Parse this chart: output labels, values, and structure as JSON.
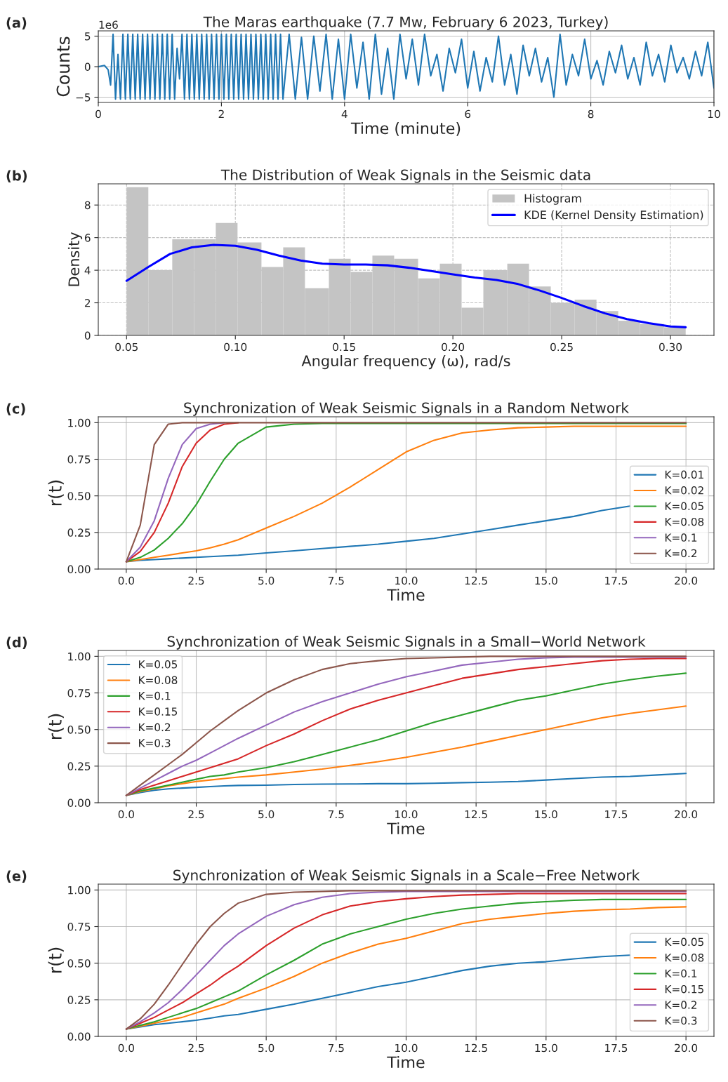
{
  "chart_data": [
    {
      "type": "line",
      "title": "The Maras earthquake (7.7 Mw, February 6 2023, Turkey)",
      "xlabel": "Time (minute)",
      "ylabel": "Counts",
      "annotations": [
        "(a)",
        "1e6"
      ],
      "xlim": [
        0,
        10
      ],
      "xticks": [
        0,
        2,
        4,
        6,
        8,
        10
      ],
      "ylim": [
        -5.86,
        5.86
      ],
      "yticks": [
        {
          "value": -5,
          "label": "−5"
        },
        0,
        5
      ],
      "grid": true,
      "legend": false,
      "series": [
        {
          "color": "#1f77b4",
          "x": [
            0,
            0.1,
            0.16,
            0.2,
            0.24,
            0.28,
            0.32,
            0.36,
            0.4,
            0.44,
            0.48,
            0.52,
            0.56,
            0.6,
            0.64,
            0.68,
            0.72,
            0.76,
            0.8,
            0.84,
            0.88,
            0.92,
            0.96,
            1.0,
            1.04,
            1.08,
            1.12,
            1.16,
            1.2,
            1.24,
            1.28,
            1.32,
            1.36,
            1.4,
            1.44,
            1.48,
            1.52,
            1.56,
            1.6,
            1.64,
            1.68,
            1.72,
            1.76,
            1.8,
            1.84,
            1.88,
            1.92,
            1.96,
            2.0,
            2.04,
            2.08,
            2.12,
            2.16,
            2.2,
            2.24,
            2.28,
            2.32,
            2.36,
            2.4,
            2.44,
            2.48,
            2.52,
            2.56,
            2.6,
            2.64,
            2.68,
            2.72,
            2.76,
            2.8,
            2.84,
            2.88,
            2.92,
            2.96,
            3.0,
            3.1,
            3.2,
            3.3,
            3.4,
            3.5,
            3.6,
            3.7,
            3.8,
            3.9,
            4.0,
            4.1,
            4.2,
            4.3,
            4.4,
            4.5,
            4.6,
            4.7,
            4.8,
            4.9,
            5.0,
            5.1,
            5.2,
            5.3,
            5.4,
            5.5,
            5.6,
            5.7,
            5.8,
            5.9,
            6.0,
            6.1,
            6.2,
            6.3,
            6.4,
            6.5,
            6.6,
            6.7,
            6.8,
            6.9,
            7.0,
            7.1,
            7.2,
            7.3,
            7.4,
            7.5,
            7.6,
            7.7,
            7.8,
            7.9,
            8.0,
            8.1,
            8.2,
            8.3,
            8.4,
            8.5,
            8.6,
            8.7,
            8.8,
            8.9,
            9.0,
            9.1,
            9.2,
            9.3,
            9.4,
            9.5,
            9.6,
            9.7,
            9.8,
            9.9,
            10.0
          ],
          "values": [
            0,
            0.2,
            -0.5,
            -3,
            5.3,
            -5.3,
            2,
            -5.3,
            5.3,
            -5.3,
            5.3,
            -5.3,
            5.3,
            -5.3,
            5.3,
            -5.3,
            5.3,
            -5.3,
            5.3,
            -5.3,
            5.3,
            -5.3,
            5.3,
            -5.3,
            5.3,
            -5.3,
            5.3,
            -5.3,
            5.3,
            -5.3,
            3,
            -2,
            5.3,
            -5.3,
            5.3,
            -5.3,
            5.3,
            -5.3,
            5.3,
            -5.3,
            5.3,
            -5.3,
            5.3,
            -5.3,
            5.3,
            -5.3,
            5.3,
            -5.3,
            5.3,
            -5.3,
            5.3,
            -5.3,
            5.3,
            -5.3,
            5.3,
            -5.3,
            5.3,
            -5.3,
            5.3,
            -5.3,
            5.3,
            -5.3,
            5.3,
            -5.3,
            5.3,
            -5.3,
            5.3,
            -5.3,
            5.3,
            -5.3,
            5.3,
            -5.3,
            5.3,
            -5.3,
            5.3,
            -5.3,
            4.8,
            -5.3,
            5.0,
            -4.0,
            5.3,
            -5.3,
            4.5,
            -5.3,
            5.3,
            -3.5,
            4.0,
            -5.3,
            5.3,
            -4.5,
            3.0,
            -5.3,
            5.3,
            -2.0,
            4.5,
            -3.0,
            5.3,
            -1.5,
            2.0,
            -4.0,
            3.0,
            -1.0,
            4.5,
            -3.5,
            2.5,
            -4.0,
            1.5,
            -2.5,
            5.0,
            -3.0,
            2.0,
            -4.5,
            3.5,
            -1.5,
            3.0,
            -2.5,
            1.5,
            -5.0,
            5.3,
            -3.0,
            2.0,
            -1.5,
            4.5,
            -2.0,
            1.0,
            -3.0,
            2.5,
            -1.0,
            3.5,
            -2.0,
            1.5,
            -3.0,
            4.0,
            -1.5,
            2.0,
            -2.5,
            3.5,
            -1.0,
            1.5,
            -2.0,
            2.5,
            -1.5,
            4.0,
            -3.5
          ]
        }
      ]
    },
    {
      "type": "histogram",
      "title": "The Distribution of Weak Signals in the Seismic data",
      "xlabel": "Angular frequency (ω), rad/s",
      "ylabel": "Density",
      "annotations": [
        "(b)"
      ],
      "xlim": [
        0.037,
        0.32
      ],
      "xticks": [
        0.05,
        {
          "value": 0.1,
          "label": "0.10"
        },
        0.15,
        {
          "value": 0.2,
          "label": "0.20"
        },
        0.25,
        {
          "value": 0.3,
          "label": "0.30"
        }
      ],
      "ylim": [
        0,
        9.3
      ],
      "yticks": [
        0,
        2,
        4,
        6,
        8
      ],
      "grid": true,
      "legend": "top right",
      "series": [
        {
          "name": "Histogram",
          "type": "histogram",
          "color": "#c4c4c4",
          "bins": [
            0.05,
            0.06,
            0.071,
            0.081,
            0.091,
            0.101,
            0.112,
            0.122,
            0.132,
            0.143,
            0.153,
            0.163,
            0.173,
            0.184,
            0.194,
            0.204,
            0.214,
            0.225,
            0.235,
            0.245,
            0.256,
            0.266,
            0.276,
            0.286,
            0.297,
            0.307
          ],
          "values": [
            9.1,
            4.0,
            5.9,
            5.9,
            6.9,
            5.7,
            4.2,
            5.4,
            2.9,
            4.7,
            3.9,
            4.9,
            4.7,
            3.5,
            4.4,
            1.7,
            4.0,
            4.4,
            3.0,
            2.0,
            2.2,
            1.5,
            0.9,
            0.7,
            0.5
          ]
        },
        {
          "name": "KDE (Kernel Density Estimation)",
          "type": "line",
          "color": "#0000ff",
          "x": [
            0.05,
            0.06,
            0.07,
            0.08,
            0.09,
            0.1,
            0.11,
            0.12,
            0.13,
            0.14,
            0.15,
            0.16,
            0.17,
            0.18,
            0.19,
            0.2,
            0.21,
            0.22,
            0.23,
            0.24,
            0.25,
            0.26,
            0.27,
            0.28,
            0.29,
            0.3,
            0.307
          ],
          "values": [
            3.35,
            4.2,
            5.0,
            5.4,
            5.55,
            5.5,
            5.25,
            4.9,
            4.6,
            4.4,
            4.35,
            4.35,
            4.3,
            4.15,
            3.95,
            3.75,
            3.55,
            3.4,
            3.15,
            2.75,
            2.3,
            1.8,
            1.35,
            1.0,
            0.75,
            0.55,
            0.5
          ]
        }
      ]
    },
    {
      "type": "line",
      "title": "Synchronization of Weak Seismic Signals in a Random Network",
      "xlabel": "Time",
      "ylabel": "r(t)",
      "annotations": [
        "(c)"
      ],
      "x": [
        0,
        0.5,
        1,
        1.5,
        2,
        2.5,
        3,
        3.5,
        4,
        5,
        6,
        7,
        8,
        9,
        10,
        11,
        12,
        13,
        14,
        15,
        16,
        17,
        18,
        19,
        20
      ],
      "xlim": [
        -1,
        21
      ],
      "xticks": [
        {
          "value": 0,
          "label": "0.0"
        },
        2.5,
        {
          "value": 5,
          "label": "5.0"
        },
        7.5,
        {
          "value": 10,
          "label": "10.0"
        },
        12.5,
        {
          "value": 15,
          "label": "15.0"
        },
        17.5,
        {
          "value": 20,
          "label": "20.0"
        }
      ],
      "ylim": [
        0,
        1.04
      ],
      "yticks": [
        {
          "value": 0,
          "label": "0.00"
        },
        0.25,
        {
          "value": 0.5,
          "label": "0.50"
        },
        0.75,
        {
          "value": 1,
          "label": "1.00"
        }
      ],
      "grid": true,
      "legend": "lower right",
      "series": [
        {
          "name": "K=0.01",
          "color": "#1f77b4",
          "values": [
            0.05,
            0.06,
            0.065,
            0.07,
            0.075,
            0.08,
            0.085,
            0.09,
            0.095,
            0.11,
            0.125,
            0.14,
            0.155,
            0.17,
            0.19,
            0.21,
            0.24,
            0.27,
            0.3,
            0.33,
            0.36,
            0.4,
            0.43,
            null,
            null
          ]
        },
        {
          "name": "K=0.02",
          "color": "#ff7f0e",
          "values": [
            0.05,
            0.065,
            0.08,
            0.095,
            0.11,
            0.125,
            0.145,
            0.17,
            0.2,
            0.28,
            0.36,
            0.45,
            0.56,
            0.68,
            0.8,
            0.88,
            0.93,
            0.95,
            0.965,
            0.97,
            0.975,
            0.975,
            0.975,
            0.975,
            0.975
          ]
        },
        {
          "name": "K=0.05",
          "color": "#2ca02c",
          "values": [
            0.05,
            0.08,
            0.13,
            0.21,
            0.31,
            0.44,
            0.6,
            0.75,
            0.86,
            0.97,
            0.99,
            0.995,
            0.995,
            0.995,
            0.995,
            0.995,
            0.995,
            0.995,
            0.995,
            0.995,
            0.995,
            0.995,
            0.995,
            0.995,
            0.995
          ]
        },
        {
          "name": "K=0.08",
          "color": "#d62728",
          "values": [
            0.05,
            0.12,
            0.25,
            0.45,
            0.7,
            0.86,
            0.95,
            0.99,
            1.0,
            null,
            null,
            null,
            null,
            null,
            null,
            null,
            null,
            null,
            null,
            null,
            null,
            null,
            null,
            null,
            null
          ]
        },
        {
          "name": "K=0.1",
          "color": "#9467bd",
          "values": [
            0.05,
            0.15,
            0.33,
            0.62,
            0.85,
            0.96,
            0.99,
            1.0,
            null,
            null,
            null,
            null,
            null,
            null,
            null,
            null,
            null,
            null,
            null,
            null,
            null,
            null,
            null,
            null,
            null
          ]
        },
        {
          "name": "K=0.2",
          "color": "#8c564b",
          "values": [
            0.05,
            0.3,
            0.85,
            0.99,
            1.0,
            1.0,
            1.0,
            1.0,
            1.0,
            1.0,
            1.0,
            1.0,
            1.0,
            1.0,
            1.0,
            1.0,
            1.0,
            1.0,
            1.0,
            1.0,
            1.0,
            1.0,
            1.0,
            1.0,
            1.0
          ]
        }
      ]
    },
    {
      "type": "line",
      "title": "Synchronization of Weak Seismic Signals in a Small−World Network",
      "xlabel": "Time",
      "ylabel": "r(t)",
      "annotations": [
        "(d)"
      ],
      "x": [
        0,
        0.5,
        1,
        1.5,
        2,
        2.5,
        3,
        3.5,
        4,
        5,
        6,
        7,
        8,
        9,
        10,
        11,
        12,
        13,
        14,
        15,
        16,
        17,
        18,
        19,
        20
      ],
      "xlim": [
        -1,
        21
      ],
      "xticks": [
        {
          "value": 0,
          "label": "0.0"
        },
        2.5,
        {
          "value": 5,
          "label": "5.0"
        },
        7.5,
        {
          "value": 10,
          "label": "10.0"
        },
        12.5,
        {
          "value": 15,
          "label": "15.0"
        },
        17.5,
        {
          "value": 20,
          "label": "20.0"
        }
      ],
      "ylim": [
        0,
        1.04
      ],
      "yticks": [
        {
          "value": 0,
          "label": "0.00"
        },
        0.25,
        {
          "value": 0.5,
          "label": "0.50"
        },
        0.75,
        {
          "value": 1,
          "label": "1.00"
        }
      ],
      "grid": true,
      "legend": "upper left",
      "series": [
        {
          "name": "K=0.05",
          "color": "#1f77b4",
          "values": [
            0.05,
            0.07,
            0.085,
            0.095,
            0.1,
            0.105,
            0.11,
            0.115,
            0.118,
            0.12,
            0.125,
            0.127,
            0.128,
            0.13,
            0.13,
            0.133,
            0.137,
            0.14,
            0.145,
            0.155,
            0.165,
            0.175,
            0.18,
            0.19,
            0.2
          ]
        },
        {
          "name": "K=0.08",
          "color": "#ff7f0e",
          "values": [
            0.05,
            0.075,
            0.095,
            0.115,
            0.13,
            0.145,
            0.155,
            0.165,
            0.175,
            0.19,
            0.21,
            0.23,
            0.255,
            0.28,
            0.31,
            0.345,
            0.38,
            0.42,
            0.46,
            0.5,
            0.54,
            0.58,
            0.61,
            0.635,
            0.66
          ]
        },
        {
          "name": "K=0.1",
          "color": "#2ca02c",
          "values": [
            0.05,
            0.08,
            0.1,
            0.12,
            0.14,
            0.16,
            0.18,
            0.19,
            0.21,
            0.24,
            0.28,
            0.33,
            0.38,
            0.43,
            0.49,
            0.55,
            0.6,
            0.65,
            0.7,
            0.73,
            0.77,
            0.81,
            0.84,
            0.865,
            0.885
          ]
        },
        {
          "name": "K=0.15",
          "color": "#d62728",
          "values": [
            0.05,
            0.09,
            0.12,
            0.15,
            0.18,
            0.21,
            0.24,
            0.27,
            0.3,
            0.39,
            0.47,
            0.56,
            0.64,
            0.7,
            0.75,
            0.8,
            0.85,
            0.88,
            0.91,
            0.93,
            0.95,
            0.97,
            0.98,
            0.985,
            0.985
          ]
        },
        {
          "name": "K=0.2",
          "color": "#9467bd",
          "values": [
            0.05,
            0.1,
            0.15,
            0.2,
            0.25,
            0.29,
            0.34,
            0.39,
            0.44,
            0.53,
            0.62,
            0.69,
            0.75,
            0.81,
            0.86,
            0.9,
            0.94,
            0.96,
            0.98,
            0.99,
            0.995,
            0.995,
            0.995,
            0.995,
            0.995
          ]
        },
        {
          "name": "K=0.3",
          "color": "#8c564b",
          "values": [
            0.05,
            0.12,
            0.19,
            0.26,
            0.33,
            0.41,
            0.49,
            0.56,
            0.63,
            0.75,
            0.84,
            0.91,
            0.95,
            0.97,
            0.985,
            0.99,
            0.995,
            1.0,
            1.0,
            1.0,
            1.0,
            1.0,
            1.0,
            1.0,
            1.0
          ]
        }
      ]
    },
    {
      "type": "line",
      "title": "Synchronization of Weak Seismic Signals in a Scale−Free Network",
      "xlabel": "Time",
      "ylabel": "r(t)",
      "annotations": [
        "(e)"
      ],
      "x": [
        0,
        0.5,
        1,
        1.5,
        2,
        2.5,
        3,
        3.5,
        4,
        5,
        6,
        7,
        8,
        9,
        10,
        11,
        12,
        13,
        14,
        15,
        16,
        17,
        18,
        19,
        20
      ],
      "xlim": [
        -1,
        21
      ],
      "xticks": [
        {
          "value": 0,
          "label": "0.0"
        },
        2.5,
        {
          "value": 5,
          "label": "5.0"
        },
        7.5,
        {
          "value": 10,
          "label": "10.0"
        },
        12.5,
        {
          "value": 15,
          "label": "15.0"
        },
        17.5,
        {
          "value": 20,
          "label": "20.0"
        }
      ],
      "ylim": [
        0,
        1.04
      ],
      "yticks": [
        {
          "value": 0,
          "label": "0.00"
        },
        0.25,
        {
          "value": 0.5,
          "label": "0.50"
        },
        0.75,
        {
          "value": 1,
          "label": "1.00"
        }
      ],
      "grid": true,
      "legend": "lower right",
      "series": [
        {
          "name": "K=0.05",
          "color": "#1f77b4",
          "values": [
            0.05,
            0.065,
            0.08,
            0.09,
            0.1,
            0.11,
            0.125,
            0.14,
            0.15,
            0.185,
            0.22,
            0.26,
            0.3,
            0.34,
            0.37,
            0.41,
            0.45,
            0.48,
            0.5,
            0.51,
            0.53,
            0.545,
            0.555,
            null,
            null
          ]
        },
        {
          "name": "K=0.08",
          "color": "#ff7f0e",
          "values": [
            0.05,
            0.07,
            0.09,
            0.11,
            0.13,
            0.16,
            0.19,
            0.22,
            0.26,
            0.33,
            0.41,
            0.5,
            0.57,
            0.63,
            0.67,
            0.72,
            0.77,
            0.8,
            0.82,
            0.84,
            0.855,
            0.865,
            0.87,
            0.88,
            0.885
          ]
        },
        {
          "name": "K=0.1",
          "color": "#2ca02c",
          "values": [
            0.05,
            0.075,
            0.1,
            0.13,
            0.16,
            0.19,
            0.23,
            0.27,
            0.31,
            0.42,
            0.52,
            0.63,
            0.7,
            0.75,
            0.8,
            0.84,
            0.87,
            0.89,
            0.91,
            0.92,
            0.93,
            0.935,
            0.935,
            0.935,
            0.935
          ]
        },
        {
          "name": "K=0.15",
          "color": "#d62728",
          "values": [
            0.05,
            0.09,
            0.13,
            0.18,
            0.23,
            0.29,
            0.35,
            0.42,
            0.48,
            0.62,
            0.74,
            0.83,
            0.89,
            0.92,
            0.94,
            0.955,
            0.965,
            0.97,
            0.975,
            0.975,
            0.975,
            0.975,
            0.975,
            0.975,
            0.975
          ]
        },
        {
          "name": "K=0.2",
          "color": "#9467bd",
          "values": [
            0.05,
            0.1,
            0.16,
            0.23,
            0.32,
            0.42,
            0.52,
            0.62,
            0.7,
            0.82,
            0.9,
            0.95,
            0.975,
            0.985,
            0.99,
            0.99,
            0.99,
            0.99,
            0.99,
            0.99,
            0.99,
            0.99,
            0.99,
            0.99,
            0.99
          ]
        },
        {
          "name": "K=0.3",
          "color": "#8c564b",
          "values": [
            0.05,
            0.12,
            0.22,
            0.35,
            0.49,
            0.63,
            0.75,
            0.84,
            0.91,
            0.97,
            0.985,
            0.99,
            0.995,
            0.995,
            0.995,
            0.995,
            0.995,
            0.995,
            0.995,
            0.995,
            0.995,
            0.995,
            0.995,
            0.995,
            0.995
          ]
        }
      ]
    }
  ]
}
